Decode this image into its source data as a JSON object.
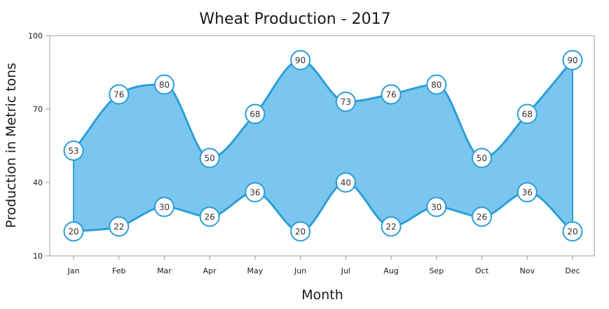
{
  "chart_data": {
    "type": "area",
    "subtype": "spline-range-area",
    "title": "Wheat Production - 2017",
    "xlabel": "Month",
    "ylabel": "Production in Metric tons",
    "categories": [
      "Jan",
      "Feb",
      "Mar",
      "Apr",
      "May",
      "Jun",
      "Jul",
      "Aug",
      "Sep",
      "Oct",
      "Nov",
      "Dec"
    ],
    "high": [
      53,
      76,
      80,
      50,
      68,
      90,
      73,
      76,
      80,
      50,
      68,
      90
    ],
    "low": [
      20,
      22,
      30,
      26,
      36,
      20,
      40,
      22,
      30,
      26,
      36,
      20
    ],
    "ylim": [
      10,
      100
    ],
    "yticks": [
      10,
      40,
      70,
      100
    ],
    "grid": false,
    "legend": "none",
    "colors": {
      "fill": "#7ac6ee",
      "line": "#2b9ed8",
      "marker_fill": "#ffffff",
      "axis": "#9e9e9e"
    }
  }
}
